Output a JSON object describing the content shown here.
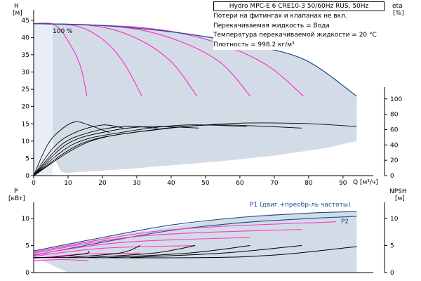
{
  "title": "Hydro MPC-E 6 CRE10-3 50/60Hz RUS, 50Hz",
  "notes": [
    "Потери на фитингах и клапанах не вкл.",
    "Перекачиваемая жидкость = Вода",
    "Температура перекачиваемой жидкости = 20 °C",
    "Плотность = 998.2 кг/м³"
  ],
  "colors": {
    "envelope_fill": "#d3dce6",
    "envelope_fill_light": "#e8eef5",
    "max_curve": "#1a4d8c",
    "reduced_curve": "#ff33cc",
    "efficiency_curve": "#000000",
    "axis": "#000000"
  },
  "chart_data": [
    {
      "type": "line",
      "name": "qh",
      "ylabel_top": "H",
      "ylabel_unit": "[м]",
      "y2label_top": "eta",
      "y2label_unit": "[%]",
      "xlabel": "Q [м³/ч]",
      "xlim": [
        0,
        98
      ],
      "ylim": [
        0,
        48
      ],
      "x_ticks": [
        0,
        10,
        20,
        30,
        40,
        50,
        60,
        70,
        80,
        90
      ],
      "y_ticks": [
        0,
        5,
        10,
        15,
        20,
        25,
        30,
        35,
        40,
        45
      ],
      "y2_ticks": [
        0,
        20,
        40,
        60,
        80,
        100
      ],
      "y2_scale_to_left": 0.2222,
      "annotation": "100 %",
      "max_curve": [
        [
          0,
          44
        ],
        [
          15,
          43.7
        ],
        [
          31,
          42.6
        ],
        [
          47,
          40.7
        ],
        [
          63,
          37.8
        ],
        [
          79,
          33.5
        ],
        [
          94,
          23
        ]
      ],
      "reduced_curves": [
        [
          [
            0,
            44
          ],
          [
            6,
            43.7
          ],
          [
            10,
            39
          ],
          [
            13.5,
            32
          ],
          [
            15.5,
            23
          ]
        ],
        [
          [
            0,
            44
          ],
          [
            12,
            43.4
          ],
          [
            20,
            39.5
          ],
          [
            26,
            33
          ],
          [
            31.5,
            23
          ]
        ],
        [
          [
            0,
            44
          ],
          [
            18,
            43.3
          ],
          [
            30,
            39.7
          ],
          [
            40,
            33
          ],
          [
            47.5,
            23
          ]
        ],
        [
          [
            0,
            44
          ],
          [
            24,
            43.2
          ],
          [
            40,
            39.8
          ],
          [
            54,
            33
          ],
          [
            63,
            23
          ]
        ],
        [
          [
            0,
            44
          ],
          [
            30,
            43
          ],
          [
            50,
            39.5
          ],
          [
            67,
            32.5
          ],
          [
            78.5,
            23
          ]
        ]
      ],
      "envelope": [
        [
          5.5,
          44
        ],
        [
          94,
          23
        ],
        [
          94,
          10
        ],
        [
          85,
          8
        ],
        [
          70,
          5.8
        ],
        [
          55,
          4.2
        ],
        [
          40,
          3
        ],
        [
          28,
          2
        ],
        [
          18,
          1.3
        ],
        [
          12,
          1
        ],
        [
          10,
          0.7
        ],
        [
          8,
          1.2
        ],
        [
          6.5,
          4
        ],
        [
          5.5,
          10
        ]
      ],
      "envelope_light": [
        [
          0,
          44
        ],
        [
          5.5,
          44
        ],
        [
          5.5,
          0
        ],
        [
          0,
          0
        ]
      ],
      "eta_curves": [
        [
          [
            0,
            0
          ],
          [
            4,
            40
          ],
          [
            8,
            60
          ],
          [
            12,
            70
          ],
          [
            16,
            66
          ],
          [
            22,
            56
          ]
        ],
        [
          [
            0,
            0
          ],
          [
            6,
            38
          ],
          [
            12,
            56
          ],
          [
            20,
            66
          ],
          [
            26,
            62
          ]
        ],
        [
          [
            0,
            0
          ],
          [
            8,
            40
          ],
          [
            16,
            56
          ],
          [
            26,
            64
          ],
          [
            36,
            62
          ]
        ],
        [
          [
            0,
            0
          ],
          [
            10,
            42
          ],
          [
            22,
            58
          ],
          [
            34,
            64
          ],
          [
            48,
            62
          ]
        ],
        [
          [
            0,
            0
          ],
          [
            12,
            42
          ],
          [
            28,
            58
          ],
          [
            44,
            66
          ],
          [
            62,
            64
          ]
        ],
        [
          [
            0,
            0
          ],
          [
            14,
            42
          ],
          [
            32,
            58
          ],
          [
            52,
            66
          ],
          [
            78,
            62
          ]
        ],
        [
          [
            0,
            0
          ],
          [
            16,
            44
          ],
          [
            36,
            60
          ],
          [
            58,
            68
          ],
          [
            78,
            68
          ],
          [
            94,
            64
          ]
        ]
      ]
    },
    {
      "type": "line",
      "name": "power",
      "ylabel_top": "P",
      "ylabel_unit": "[кВт]",
      "y2label_top": "NPSH",
      "y2label_unit": "[м]",
      "xlim": [
        0,
        98
      ],
      "ylim": [
        0,
        13
      ],
      "y_ticks": [
        0,
        5,
        10
      ],
      "y2_ticks": [
        0,
        5,
        10
      ],
      "series_labels": [
        "P1 (двиг.+преобр-ль частоты)",
        "P2"
      ],
      "p1_curve": [
        [
          0,
          4
        ],
        [
          20,
          6.5
        ],
        [
          40,
          8.8
        ],
        [
          60,
          10.2
        ],
        [
          80,
          11
        ],
        [
          94,
          11.3
        ]
      ],
      "p2_curve": [
        [
          0,
          3.2
        ],
        [
          20,
          5.6
        ],
        [
          40,
          7.8
        ],
        [
          60,
          9.2
        ],
        [
          80,
          10
        ],
        [
          94,
          10.4
        ]
      ],
      "reduced_curves": [
        [
          [
            0,
            2.2
          ],
          [
            8,
            2.4
          ],
          [
            16,
            2.2
          ]
        ],
        [
          [
            0,
            2.6
          ],
          [
            14,
            3.4
          ],
          [
            31,
            3.6
          ]
        ],
        [
          [
            0,
            3
          ],
          [
            20,
            4.5
          ],
          [
            47,
            5
          ]
        ],
        [
          [
            0,
            3.3
          ],
          [
            26,
            5.6
          ],
          [
            63,
            6.5
          ]
        ],
        [
          [
            0,
            3.6
          ],
          [
            32,
            6.8
          ],
          [
            78,
            8
          ]
        ],
        [
          [
            0,
            3.8
          ],
          [
            38,
            7.8
          ],
          [
            88,
            9.4
          ]
        ]
      ],
      "npsh_curves": [
        [
          [
            5,
            2.8
          ],
          [
            15,
            3.5
          ],
          [
            16,
            4
          ]
        ],
        [
          [
            10,
            2.8
          ],
          [
            25,
            3.6
          ],
          [
            31,
            5
          ]
        ],
        [
          [
            16,
            2.8
          ],
          [
            35,
            3.6
          ],
          [
            47,
            5
          ]
        ],
        [
          [
            22,
            2.8
          ],
          [
            45,
            3.6
          ],
          [
            63,
            5
          ]
        ],
        [
          [
            28,
            2.8
          ],
          [
            55,
            3.6
          ],
          [
            78,
            5
          ]
        ],
        [
          [
            0,
            2.8
          ],
          [
            60,
            2.9
          ],
          [
            94,
            4.8
          ]
        ]
      ],
      "envelope": [
        [
          0,
          3
        ],
        [
          0,
          4
        ],
        [
          30,
          7.5
        ],
        [
          60,
          10.3
        ],
        [
          80,
          11
        ],
        [
          94,
          11.2
        ],
        [
          94,
          0
        ],
        [
          10,
          0
        ],
        [
          0,
          2
        ]
      ]
    }
  ]
}
